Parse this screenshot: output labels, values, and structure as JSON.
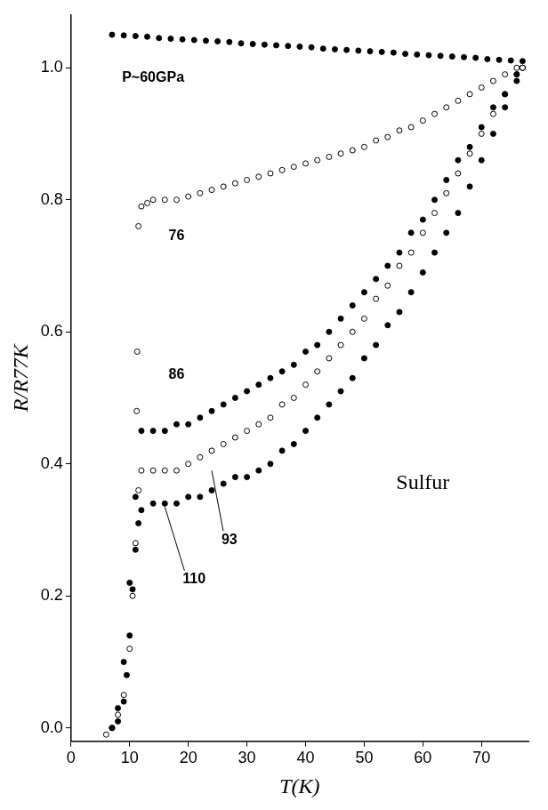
{
  "chart_data": {
    "type": "scatter",
    "x_label": "T(K)",
    "y_label": "R/R77K",
    "xlim": [
      0,
      78
    ],
    "xticks": [
      0,
      10,
      20,
      30,
      40,
      50,
      60,
      70
    ],
    "ylim": [
      -0.02,
      1.08
    ],
    "yticks": [
      {
        "value": 0,
        "label": "0.0"
      },
      0.2,
      0.4,
      0.6,
      0.8,
      {
        "value": 1,
        "label": "1.0"
      }
    ],
    "grid": false,
    "annotations": [
      "Sulfur"
    ],
    "series": [
      {
        "name": "P~60GPa",
        "color": "#000000",
        "marker": "circle",
        "x": [
          7,
          9,
          11,
          13,
          15,
          17,
          19,
          21,
          23,
          25,
          27,
          29,
          31,
          33,
          35,
          37,
          39,
          41,
          43,
          45,
          47,
          49,
          51,
          53,
          55,
          57,
          59,
          61,
          63,
          65,
          67,
          69,
          71,
          73,
          75,
          77
        ],
        "values": [
          1.05,
          1.049,
          1.048,
          1.047,
          1.045,
          1.044,
          1.043,
          1.042,
          1.041,
          1.04,
          1.039,
          1.037,
          1.036,
          1.035,
          1.034,
          1.033,
          1.032,
          1.031,
          1.029,
          1.028,
          1.027,
          1.026,
          1.025,
          1.024,
          1.023,
          1.021,
          1.02,
          1.019,
          1.018,
          1.017,
          1.016,
          1.015,
          1.013,
          1.012,
          1.011,
          1.01
        ]
      },
      {
        "name": "76",
        "color": "#000000",
        "marker": "open_circle",
        "x": [
          11.2,
          11.3,
          11.5,
          12,
          13,
          14,
          16,
          18,
          20,
          22,
          24,
          26,
          28,
          30,
          32,
          34,
          36,
          38,
          40,
          42,
          44,
          46,
          48,
          50,
          52,
          54,
          56,
          58,
          60,
          62,
          64,
          66,
          68,
          70,
          72,
          74,
          76,
          77
        ],
        "values": [
          0.48,
          0.57,
          0.76,
          0.79,
          0.795,
          0.8,
          0.8,
          0.8,
          0.805,
          0.81,
          0.815,
          0.82,
          0.825,
          0.83,
          0.835,
          0.84,
          0.845,
          0.85,
          0.855,
          0.86,
          0.865,
          0.87,
          0.875,
          0.88,
          0.89,
          0.895,
          0.905,
          0.91,
          0.92,
          0.93,
          0.94,
          0.95,
          0.96,
          0.97,
          0.98,
          0.99,
          1.0,
          1.0
        ]
      },
      {
        "name": "86",
        "color": "#000000",
        "marker": "circle",
        "x": [
          7,
          8,
          9,
          10,
          11,
          12,
          14,
          16,
          18,
          20,
          22,
          24,
          26,
          28,
          30,
          32,
          34,
          36,
          38,
          40,
          42,
          44,
          46,
          48,
          50,
          52,
          54,
          56,
          58,
          60,
          62,
          64,
          66,
          68,
          70,
          72,
          74,
          76,
          77
        ],
        "values": [
          0.0,
          0.03,
          0.1,
          0.22,
          0.35,
          0.45,
          0.45,
          0.45,
          0.46,
          0.46,
          0.47,
          0.48,
          0.49,
          0.5,
          0.51,
          0.52,
          0.53,
          0.54,
          0.55,
          0.57,
          0.58,
          0.6,
          0.62,
          0.64,
          0.66,
          0.68,
          0.7,
          0.72,
          0.75,
          0.77,
          0.8,
          0.83,
          0.86,
          0.88,
          0.91,
          0.94,
          0.96,
          0.99,
          1.0
        ]
      },
      {
        "name": "93",
        "color": "#000000",
        "marker": "open_circle",
        "x": [
          6,
          7,
          8,
          9,
          10,
          10.5,
          11,
          11.5,
          12,
          14,
          16,
          18,
          20,
          22,
          24,
          26,
          28,
          30,
          32,
          34,
          36,
          38,
          40,
          42,
          44,
          46,
          48,
          50,
          52,
          54,
          56,
          58,
          60,
          62,
          64,
          66,
          68,
          70,
          72,
          74,
          76,
          77
        ],
        "values": [
          -0.01,
          0.0,
          0.02,
          0.05,
          0.12,
          0.2,
          0.28,
          0.36,
          0.39,
          0.39,
          0.39,
          0.39,
          0.4,
          0.41,
          0.42,
          0.43,
          0.44,
          0.45,
          0.46,
          0.47,
          0.49,
          0.5,
          0.52,
          0.54,
          0.56,
          0.58,
          0.6,
          0.62,
          0.65,
          0.67,
          0.7,
          0.72,
          0.75,
          0.78,
          0.81,
          0.84,
          0.87,
          0.9,
          0.93,
          0.96,
          0.99,
          1.0
        ]
      },
      {
        "name": "110",
        "color": "#000000",
        "marker": "circle",
        "x": [
          7,
          8,
          9,
          9.5,
          10,
          10.5,
          11,
          11.5,
          12,
          14,
          16,
          18,
          20,
          22,
          24,
          26,
          28,
          30,
          32,
          34,
          36,
          38,
          40,
          42,
          44,
          46,
          48,
          50,
          52,
          54,
          56,
          58,
          60,
          62,
          64,
          66,
          68,
          70,
          72,
          74,
          76,
          77
        ],
        "values": [
          0.0,
          0.01,
          0.04,
          0.08,
          0.14,
          0.21,
          0.27,
          0.31,
          0.33,
          0.34,
          0.34,
          0.34,
          0.35,
          0.35,
          0.36,
          0.37,
          0.38,
          0.38,
          0.39,
          0.4,
          0.42,
          0.43,
          0.45,
          0.47,
          0.49,
          0.51,
          0.53,
          0.56,
          0.58,
          0.61,
          0.63,
          0.66,
          0.69,
          0.72,
          0.75,
          0.78,
          0.82,
          0.86,
          0.9,
          0.94,
          0.98,
          1.0
        ]
      }
    ]
  }
}
